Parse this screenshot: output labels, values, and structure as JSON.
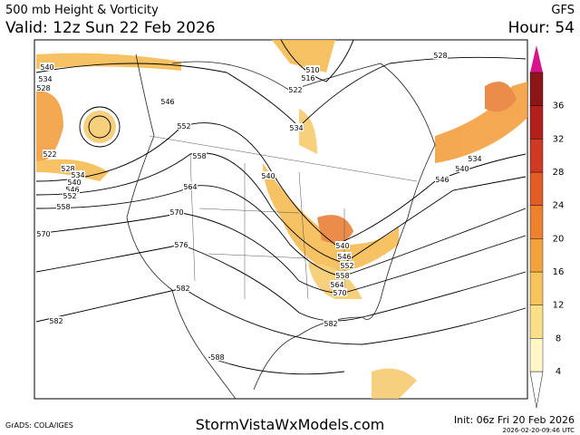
{
  "header": {
    "title": "500 mb Height & Vorticity",
    "model": "GFS",
    "valid": "Valid: 12z Sun 22 Feb 2026",
    "hour": "Hour: 54"
  },
  "footer": {
    "credit": "GrADS: COLA/IGES",
    "site": "StormVistaWxModels.com",
    "init": "Init: 06z Fri 20 Feb 2026",
    "stamp": "2026-02-20-09:46 UTC"
  },
  "colorbar": {
    "labels": [
      "4",
      "8",
      "12",
      "16",
      "20",
      "24",
      "28",
      "32",
      "36"
    ]
  },
  "contour_labels": [
    "540",
    "534",
    "528",
    "522",
    "528",
    "534",
    "540",
    "546",
    "552",
    "558",
    "570",
    "546",
    "552",
    "558",
    "564",
    "570",
    "576",
    "582",
    "582",
    "588",
    "540",
    "534",
    "522",
    "516",
    "510",
    "528",
    "546",
    "540",
    "534",
    "540",
    "546",
    "552",
    "558",
    "564",
    "570",
    "582"
  ]
}
